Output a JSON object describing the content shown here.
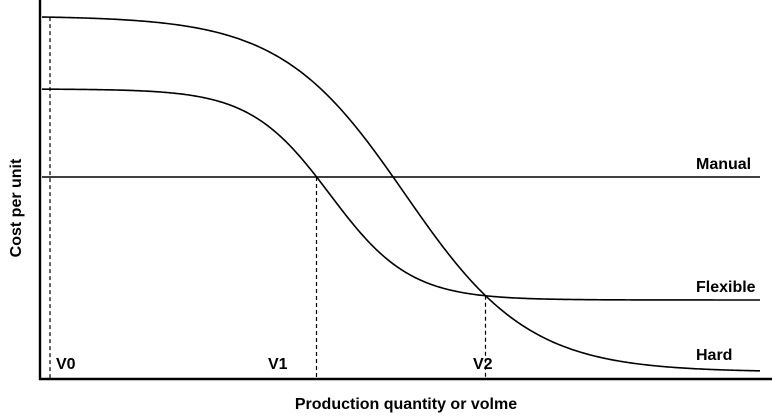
{
  "chart_data": {
    "type": "line",
    "title": "",
    "xlabel": "Production quantity or volme",
    "ylabel": "Cost per unit",
    "grid": false,
    "legend": "none",
    "series": [
      {
        "name": "Manual",
        "shape": "constant"
      },
      {
        "name": "Flexible",
        "shape": "sigmoid-decreasing"
      },
      {
        "name": "Hard",
        "shape": "sigmoid-decreasing"
      }
    ],
    "markers": [
      {
        "label": "V0"
      },
      {
        "label": "V1"
      },
      {
        "label": "V2"
      }
    ]
  }
}
